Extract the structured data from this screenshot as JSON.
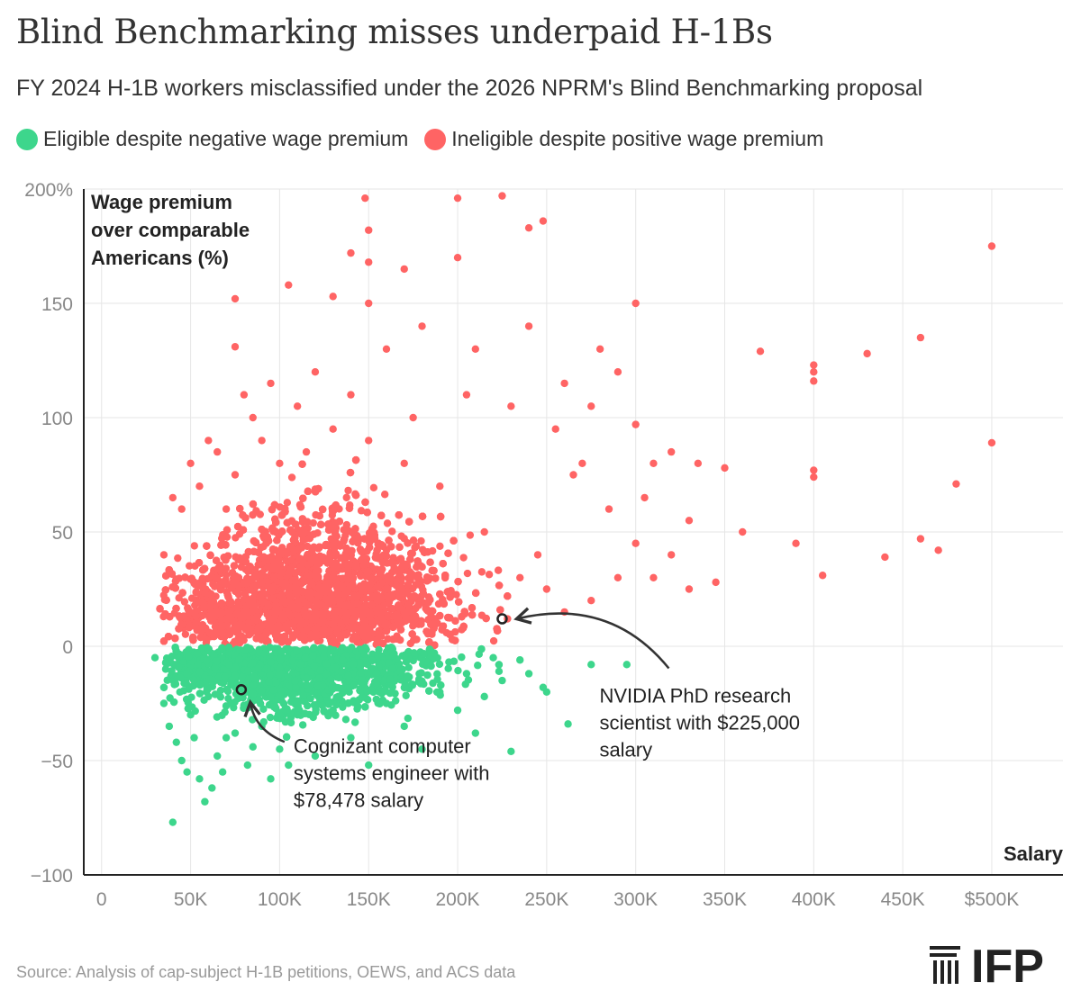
{
  "header": {
    "title": "Blind Benchmarking misses underpaid H-1Bs",
    "subtitle": "FY 2024 H-1B workers misclassified under the 2026 NPRM's Blind Benchmarking proposal"
  },
  "footer": {
    "source": "Source: Analysis of cap-subject H-1B petitions, OEWS, and ACS data",
    "logo_text": "IFP"
  },
  "chart_data": {
    "type": "scatter",
    "title": "Blind Benchmarking misses underpaid H-1Bs",
    "subtitle": "FY 2024 H-1B workers misclassified under the 2026 NPRM's Blind Benchmarking proposal",
    "xlabel": "Salary",
    "ylabel_lines": [
      "Wage premium",
      "over comparable",
      "Americans (%)"
    ],
    "xlim": [
      -10000,
      540000
    ],
    "ylim": [
      -100,
      200
    ],
    "grid": true,
    "legend_position": "top-left",
    "xticks": [
      {
        "value": 0,
        "label": "0"
      },
      {
        "value": 50000,
        "label": "50K"
      },
      {
        "value": 100000,
        "label": "100K"
      },
      {
        "value": 150000,
        "label": "150K"
      },
      {
        "value": 200000,
        "label": "200K"
      },
      {
        "value": 250000,
        "label": "250K"
      },
      {
        "value": 300000,
        "label": "300K"
      },
      {
        "value": 350000,
        "label": "350K"
      },
      {
        "value": 400000,
        "label": "400K"
      },
      {
        "value": 450000,
        "label": "450K"
      },
      {
        "value": 500000,
        "label": "$500K"
      }
    ],
    "yticks": [
      {
        "value": 200,
        "label": "200%"
      },
      {
        "value": 150,
        "label": "150"
      },
      {
        "value": 100,
        "label": "100"
      },
      {
        "value": 50,
        "label": "50"
      },
      {
        "value": 0,
        "label": "0"
      },
      {
        "value": -50,
        "label": "−50"
      },
      {
        "value": -100,
        "label": "−100"
      }
    ],
    "series": [
      {
        "name": "Eligible despite negative wage premium",
        "color": "#3dd68c",
        "points": [
          [
            40000,
            -77
          ],
          [
            58000,
            -68
          ],
          [
            62000,
            -62
          ],
          [
            55000,
            -58
          ],
          [
            48000,
            -55
          ],
          [
            45000,
            -50
          ],
          [
            68000,
            -55
          ],
          [
            82000,
            -52
          ],
          [
            95000,
            -58
          ],
          [
            105000,
            -52
          ],
          [
            120000,
            -48
          ],
          [
            150000,
            -52
          ],
          [
            180000,
            -45
          ],
          [
            210000,
            -38
          ],
          [
            230000,
            -46
          ],
          [
            262000,
            -34
          ],
          [
            248000,
            -18
          ],
          [
            275000,
            -8
          ],
          [
            295000,
            -8
          ],
          [
            235000,
            -6
          ],
          [
            35000,
            -25
          ],
          [
            38000,
            -35
          ],
          [
            42000,
            -42
          ],
          [
            50000,
            -30
          ],
          [
            60000,
            -22
          ],
          [
            70000,
            -40
          ],
          [
            90000,
            -35
          ],
          [
            110000,
            -30
          ],
          [
            130000,
            -28
          ],
          [
            160000,
            -25
          ],
          [
            190000,
            -20
          ],
          [
            200000,
            -28
          ],
          [
            215000,
            -22
          ],
          [
            225000,
            -15
          ],
          [
            240000,
            -12
          ],
          [
            250000,
            -20
          ],
          [
            205000,
            -12
          ],
          [
            220000,
            -5
          ],
          [
            170000,
            -35
          ],
          [
            140000,
            -40
          ],
          [
            100000,
            -45
          ],
          [
            85000,
            -44
          ],
          [
            75000,
            -38
          ],
          [
            65000,
            -48
          ],
          [
            52000,
            -40
          ],
          [
            44000,
            -20
          ],
          [
            36000,
            -10
          ],
          [
            30000,
            -5
          ]
        ]
      },
      {
        "name": "Ineligible despite positive wage premium",
        "color": "#ff6464",
        "points": [
          [
            148000,
            196
          ],
          [
            200000,
            196
          ],
          [
            225000,
            197
          ],
          [
            248000,
            186
          ],
          [
            240000,
            183
          ],
          [
            150000,
            182
          ],
          [
            200000,
            170
          ],
          [
            140000,
            172
          ],
          [
            150000,
            168
          ],
          [
            170000,
            165
          ],
          [
            500000,
            175
          ],
          [
            75000,
            152
          ],
          [
            105000,
            158
          ],
          [
            130000,
            153
          ],
          [
            150000,
            150
          ],
          [
            300000,
            150
          ],
          [
            75000,
            131
          ],
          [
            370000,
            129
          ],
          [
            430000,
            128
          ],
          [
            460000,
            135
          ],
          [
            400000,
            123
          ],
          [
            400000,
            120
          ],
          [
            400000,
            116
          ],
          [
            500000,
            89
          ],
          [
            400000,
            77
          ],
          [
            400000,
            74
          ],
          [
            480000,
            71
          ],
          [
            350000,
            78
          ],
          [
            310000,
            80
          ],
          [
            335000,
            80
          ],
          [
            360000,
            50
          ],
          [
            390000,
            45
          ],
          [
            405000,
            31
          ],
          [
            440000,
            39
          ],
          [
            460000,
            47
          ],
          [
            470000,
            42
          ],
          [
            330000,
            25
          ],
          [
            310000,
            30
          ],
          [
            345000,
            28
          ],
          [
            320000,
            40
          ],
          [
            305000,
            65
          ],
          [
            330000,
            55
          ],
          [
            300000,
            97
          ],
          [
            320000,
            85
          ],
          [
            270000,
            80
          ],
          [
            290000,
            120
          ],
          [
            260000,
            115
          ],
          [
            275000,
            105
          ],
          [
            280000,
            130
          ],
          [
            240000,
            140
          ],
          [
            210000,
            130
          ],
          [
            180000,
            140
          ],
          [
            160000,
            130
          ],
          [
            120000,
            120
          ],
          [
            95000,
            115
          ],
          [
            80000,
            110
          ],
          [
            60000,
            90
          ],
          [
            50000,
            80
          ],
          [
            40000,
            65
          ],
          [
            35000,
            40
          ],
          [
            45000,
            60
          ],
          [
            55000,
            70
          ],
          [
            65000,
            85
          ],
          [
            85000,
            100
          ],
          [
            110000,
            105
          ],
          [
            140000,
            110
          ],
          [
            175000,
            100
          ],
          [
            205000,
            110
          ],
          [
            230000,
            105
          ],
          [
            255000,
            95
          ],
          [
            265000,
            75
          ],
          [
            285000,
            60
          ],
          [
            300000,
            45
          ],
          [
            290000,
            30
          ],
          [
            275000,
            20
          ],
          [
            260000,
            15
          ],
          [
            250000,
            25
          ],
          [
            245000,
            40
          ],
          [
            235000,
            30
          ],
          [
            228000,
            12
          ],
          [
            215000,
            50
          ],
          [
            190000,
            70
          ],
          [
            170000,
            80
          ],
          [
            150000,
            90
          ],
          [
            130000,
            95
          ],
          [
            115000,
            85
          ],
          [
            100000,
            80
          ],
          [
            90000,
            90
          ],
          [
            75000,
            75
          ],
          [
            70000,
            60
          ]
        ]
      }
    ],
    "annotations": [
      {
        "text_lines": [
          "NVIDIA PhD research",
          "scientist with $225,000",
          "salary"
        ],
        "x": 225000,
        "y": 12
      },
      {
        "text_lines": [
          "Cognizant computer",
          "systems engineer with",
          "$78,478 salary"
        ],
        "x": 78478,
        "y": -19
      }
    ]
  }
}
